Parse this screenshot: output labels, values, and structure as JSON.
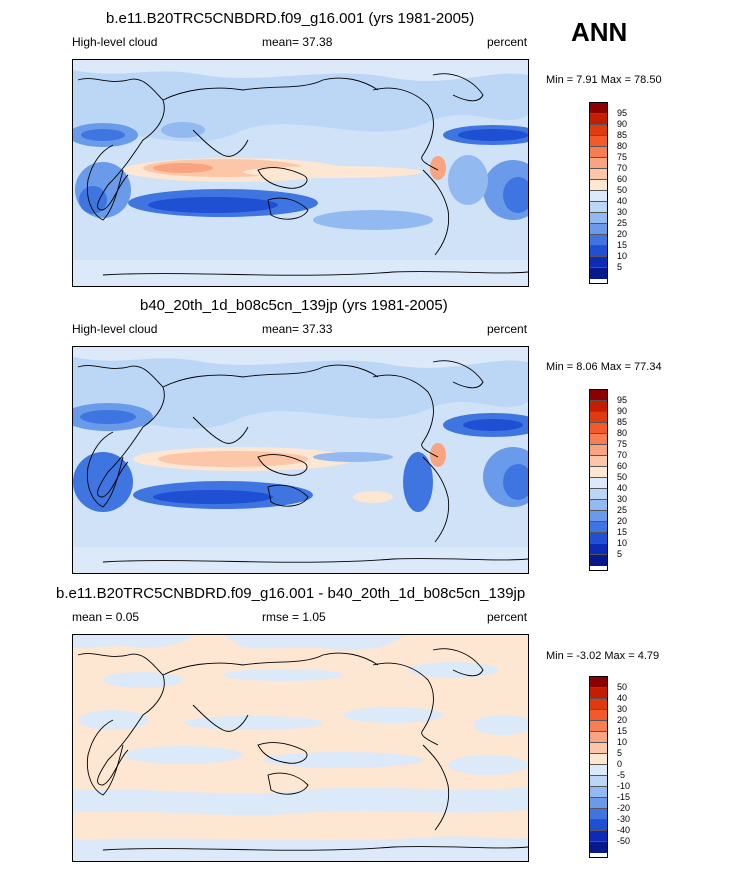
{
  "season": "ANN",
  "panels": [
    {
      "title": "b.e11.B20TRC5CNBDRD.f09_g16.001 (yrs 1981-2005)",
      "left_label": "High-level cloud",
      "center_label": "mean=  37.38",
      "right_label": "percent",
      "minmax": "Min =   7.91 Max =  78.50"
    },
    {
      "title": "b40_20th_1d_b08c5cn_139jp (yrs 1981-2005)",
      "left_label": "High-level cloud",
      "center_label": "mean=  37.33",
      "right_label": "percent",
      "minmax": "Min =   8.06 Max =  77.34"
    },
    {
      "title": "b.e11.B20TRC5CNBDRD.f09_g16.001 - b40_20th_1d_b08c5cn_139jp",
      "left_label": "mean =   0.05",
      "center_label": "rmse =   1.05",
      "right_label": "percent",
      "minmax": "Min =  -3.02 Max =   4.79"
    }
  ],
  "colorbar_abs": {
    "labels": [
      "95",
      "90",
      "85",
      "80",
      "75",
      "70",
      "60",
      "50",
      "40",
      "30",
      "25",
      "20",
      "15",
      "10",
      "5"
    ],
    "colors": [
      "#8b0000",
      "#c41d00",
      "#e03a10",
      "#f25a2a",
      "#f67e52",
      "#f9a480",
      "#fcc6a8",
      "#fde6d2",
      "#dce9f9",
      "#bcd6f5",
      "#92baf0",
      "#6a9bea",
      "#3f75e0",
      "#1f4fd2",
      "#0c2cb8",
      "#071a8c"
    ]
  },
  "colorbar_diff": {
    "labels": [
      "50",
      "40",
      "30",
      "20",
      "15",
      "10",
      "5",
      "0",
      "-5",
      "-10",
      "-15",
      "-20",
      "-30",
      "-40",
      "-50"
    ],
    "colors": [
      "#8b0000",
      "#c41d00",
      "#e03a10",
      "#f25a2a",
      "#f67e52",
      "#f9a480",
      "#fcc6a8",
      "#fde6d2",
      "#dce9f9",
      "#bcd6f5",
      "#92baf0",
      "#6a9bea",
      "#3f75e0",
      "#1f4fd2",
      "#0c2cb8",
      "#071a8c"
    ]
  }
}
